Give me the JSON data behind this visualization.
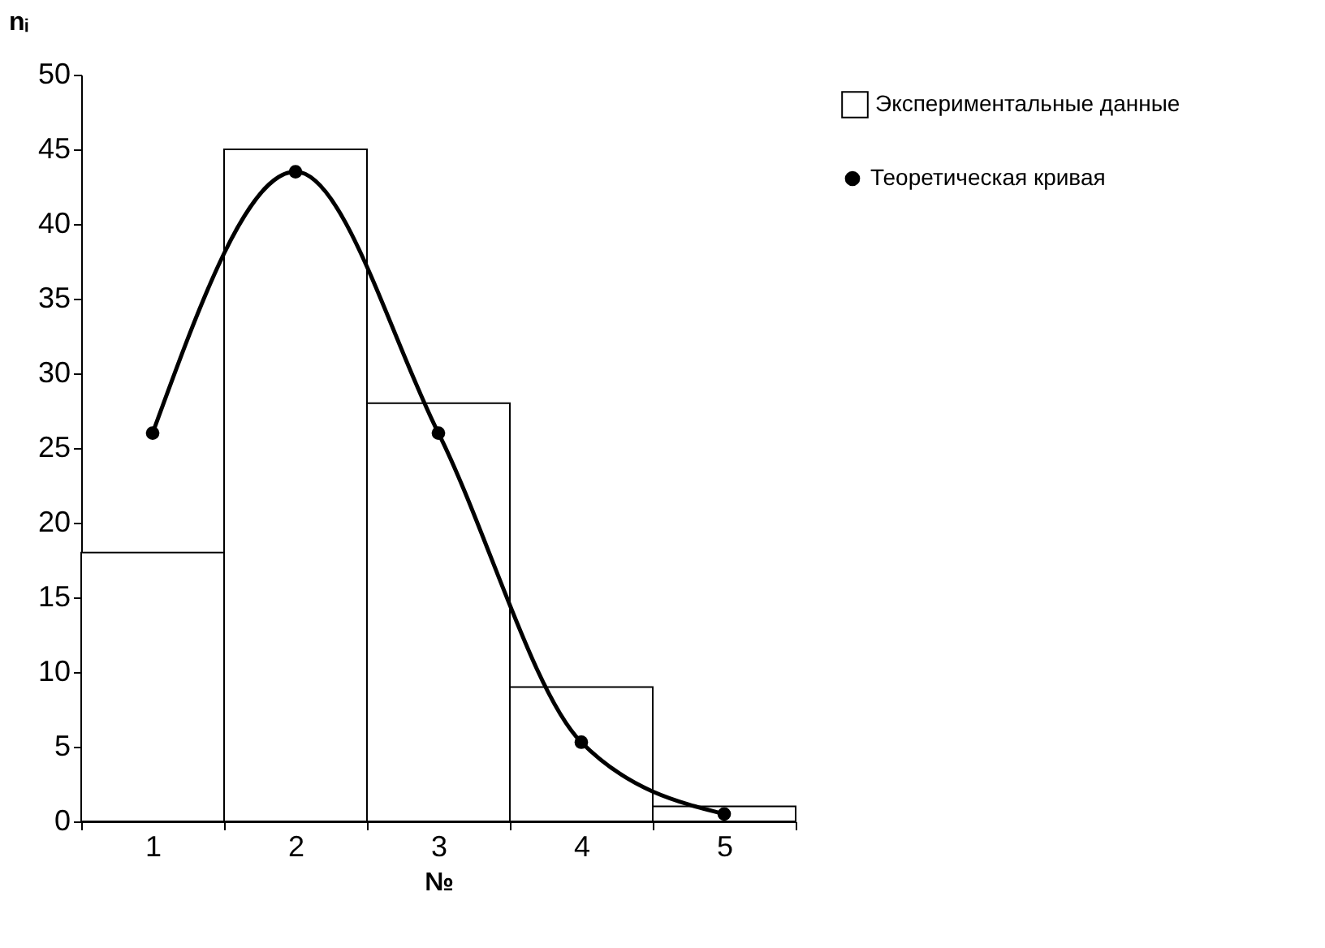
{
  "chart_data": {
    "type": "bar",
    "xlabel": "№",
    "ylabel": "nᵢ",
    "categories": [
      "1",
      "2",
      "3",
      "4",
      "5"
    ],
    "series": [
      {
        "name": "Экспериментальные данные",
        "color": "#ffffff",
        "values": [
          18,
          45,
          28,
          9,
          1
        ]
      },
      {
        "name": "Теоретическая кривая",
        "type": "line",
        "color": "#000000",
        "values": [
          26,
          43.5,
          26,
          5.3,
          0.5
        ]
      }
    ],
    "ylim": [
      0,
      50
    ],
    "yticks": [
      0,
      5,
      10,
      15,
      20,
      25,
      30,
      35,
      40,
      45,
      50
    ],
    "grid": false,
    "legend": "right",
    "marker": "circle",
    "line_style": "solid"
  }
}
